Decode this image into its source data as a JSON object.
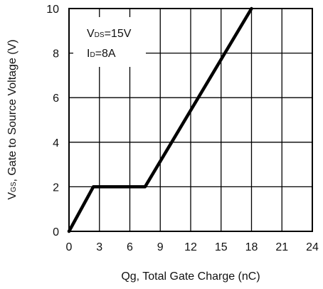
{
  "chart_data": {
    "type": "line",
    "xlabel": "Qg, Total Gate Charge (nC)",
    "ylabel": {
      "prefix": "V",
      "sub": "GS",
      "rest": ", Gate to Source Voltage (V)"
    },
    "xlim": [
      0,
      24
    ],
    "ylim": [
      0,
      10
    ],
    "x_ticks": [
      0,
      3,
      6,
      9,
      12,
      15,
      18,
      21,
      24
    ],
    "y_ticks": [
      0,
      2,
      4,
      6,
      8,
      10
    ],
    "grid": true,
    "annotations": [
      {
        "main": "V",
        "sub": "DS",
        "rest": "=15V"
      },
      {
        "main": "I",
        "sub": "D",
        "rest": "=8A"
      }
    ],
    "series": [
      {
        "x": [
          0,
          2.4,
          7.5,
          18
        ],
        "y": [
          0,
          2.0,
          2.0,
          10.0
        ]
      }
    ]
  }
}
